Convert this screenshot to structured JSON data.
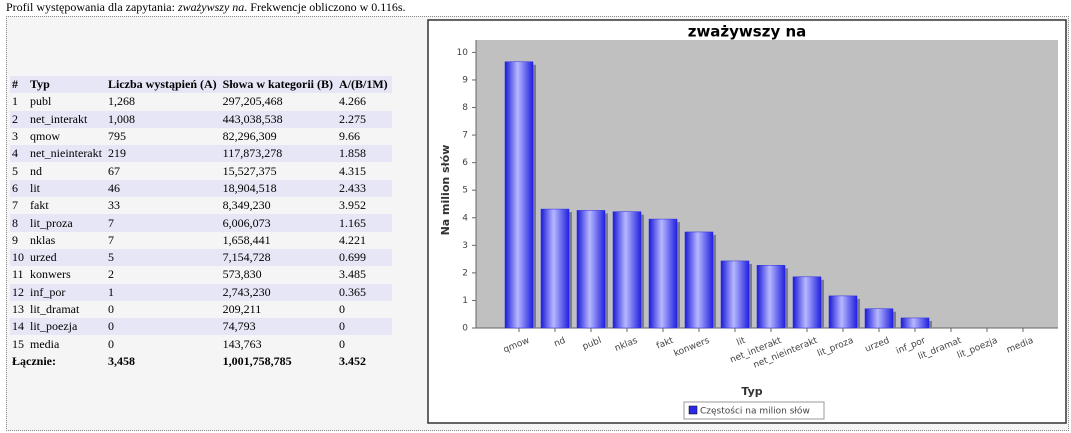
{
  "header": {
    "prefix": "Profil występowania dla zapytania:",
    "query": "zważywszy na",
    "suffix": ". Frekwencje obliczono w 0.116s."
  },
  "table": {
    "columns": [
      "#",
      "Typ",
      "Liczba wystąpień (A)",
      "Słowa w kategorii (B)",
      "A/(B/1M)"
    ],
    "rows": [
      [
        "1",
        "publ",
        "1,268",
        "297,205,468",
        "4.266"
      ],
      [
        "2",
        "net_interakt",
        "1,008",
        "443,038,538",
        "2.275"
      ],
      [
        "3",
        "qmow",
        "795",
        "82,296,309",
        "9.66"
      ],
      [
        "4",
        "net_nieinterakt",
        "219",
        "117,873,278",
        "1.858"
      ],
      [
        "5",
        "nd",
        "67",
        "15,527,375",
        "4.315"
      ],
      [
        "6",
        "lit",
        "46",
        "18,904,518",
        "2.433"
      ],
      [
        "7",
        "fakt",
        "33",
        "8,349,230",
        "3.952"
      ],
      [
        "8",
        "lit_proza",
        "7",
        "6,006,073",
        "1.165"
      ],
      [
        "9",
        "nklas",
        "7",
        "1,658,441",
        "4.221"
      ],
      [
        "10",
        "urzed",
        "5",
        "7,154,728",
        "0.699"
      ],
      [
        "11",
        "konwers",
        "2",
        "573,830",
        "3.485"
      ],
      [
        "12",
        "inf_por",
        "1",
        "2,743,230",
        "0.365"
      ],
      [
        "13",
        "lit_dramat",
        "0",
        "209,211",
        "0"
      ],
      [
        "14",
        "lit_poezja",
        "0",
        "74,793",
        "0"
      ],
      [
        "15",
        "media",
        "0",
        "143,763",
        "0"
      ]
    ],
    "total": [
      "Łącznie:",
      "3,458",
      "1,001,758,785",
      "3.452"
    ]
  },
  "chart_data": {
    "type": "bar",
    "title": "zważywszy na",
    "x_label": "Typ",
    "y_label": "Na milion słów",
    "categories": [
      "qmow",
      "nd",
      "publ",
      "nklas",
      "fakt",
      "konwers",
      "lit",
      "net_interakt",
      "net_nieinterakt",
      "lit_proza",
      "urzed",
      "inf_por",
      "lit_dramat",
      "lit_poezja",
      "media"
    ],
    "series": [
      {
        "name": "Częstości na milion słów",
        "color": "#2a2ae6",
        "values": [
          9.66,
          4.315,
          4.266,
          4.221,
          3.952,
          3.485,
          2.433,
          2.275,
          1.858,
          1.165,
          0.699,
          0.365,
          0,
          0,
          0
        ]
      }
    ],
    "ylim": [
      0,
      10.45
    ],
    "yticks": [
      0,
      1,
      2,
      3,
      4,
      5,
      6,
      7,
      8,
      9,
      10
    ],
    "grid": false
  }
}
